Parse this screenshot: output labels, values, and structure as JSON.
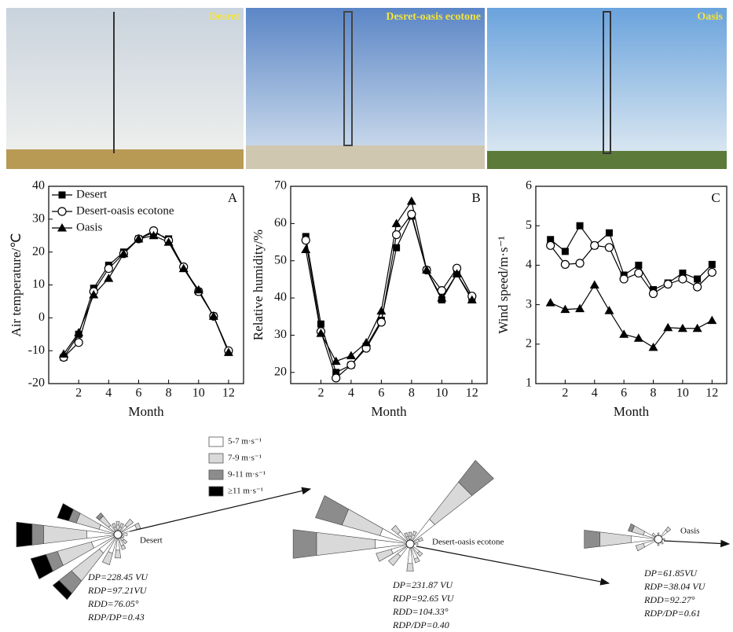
{
  "photos": [
    {
      "label": "Desret"
    },
    {
      "label": "Desret-oasis ecotone"
    },
    {
      "label": "Oasis"
    }
  ],
  "chart_data": [
    {
      "type": "line",
      "panel": "A",
      "x_label": "Month",
      "y_label": "Air temperature/℃",
      "x": [
        1,
        2,
        3,
        4,
        5,
        6,
        7,
        8,
        9,
        10,
        11,
        12
      ],
      "xlim": [
        0,
        13
      ],
      "xticks": [
        2,
        4,
        6,
        8,
        10,
        12
      ],
      "ylim": [
        -20,
        40
      ],
      "yticks": [
        -20,
        -10,
        0,
        10,
        20,
        30,
        40
      ],
      "legend": "upper left",
      "series": [
        {
          "name": "Desert",
          "color": "#000",
          "marker": "square",
          "values": [
            -12,
            -5,
            9,
            16,
            20,
            24,
            26,
            24,
            15,
            8,
            0.5,
            -10.5
          ]
        },
        {
          "name": "Desert-oasis ecotone",
          "color": "#000",
          "marker": "circle",
          "values": [
            -12,
            -7.5,
            8,
            15,
            19.5,
            24,
            26.5,
            23.5,
            15.5,
            8,
            0.5,
            -10
          ]
        },
        {
          "name": "Oasis",
          "color": "#000",
          "marker": "triangle",
          "values": [
            -11,
            -4.5,
            7,
            12,
            19.5,
            24,
            25,
            23,
            15,
            8.5,
            0.5,
            -10.5
          ]
        }
      ]
    },
    {
      "type": "line",
      "panel": "B",
      "x_label": "Month",
      "y_label": "Relative humidity/%",
      "x": [
        1,
        2,
        3,
        4,
        5,
        6,
        7,
        8,
        9,
        10,
        11,
        12
      ],
      "xlim": [
        0,
        13
      ],
      "xticks": [
        2,
        4,
        6,
        8,
        10,
        12
      ],
      "ylim": [
        17,
        70
      ],
      "yticks": [
        20,
        30,
        40,
        50,
        60,
        70
      ],
      "series": [
        {
          "color": "#000",
          "marker": "square",
          "values": [
            56.5,
            33,
            20,
            22,
            27,
            34,
            53.5,
            62,
            47.5,
            39.5,
            46.5,
            40
          ]
        },
        {
          "color": "#000",
          "marker": "circle",
          "values": [
            55.5,
            31,
            18.5,
            22,
            26.5,
            33.5,
            57,
            62.5,
            47.5,
            42,
            48,
            40.5
          ]
        },
        {
          "color": "#000",
          "marker": "triangle",
          "values": [
            53,
            30.5,
            23,
            24.5,
            28,
            36.5,
            60,
            66,
            47.5,
            40,
            46.5,
            39.5
          ]
        }
      ]
    },
    {
      "type": "line",
      "panel": "C",
      "x_label": "Month",
      "y_label": "Wind speed/m·s⁻¹",
      "x": [
        1,
        2,
        3,
        4,
        5,
        6,
        7,
        8,
        9,
        10,
        11,
        12
      ],
      "xlim": [
        0,
        13
      ],
      "xticks": [
        2,
        4,
        6,
        8,
        10,
        12
      ],
      "ylim": [
        1,
        6
      ],
      "yticks": [
        1,
        2,
        3,
        4,
        5,
        6
      ],
      "series": [
        {
          "color": "#000",
          "marker": "square",
          "values": [
            4.65,
            4.35,
            5,
            4.5,
            4.82,
            3.75,
            4,
            3.38,
            3.55,
            3.8,
            3.65,
            4.02
          ]
        },
        {
          "color": "#000",
          "marker": "circle",
          "values": [
            4.5,
            4.02,
            4.05,
            4.5,
            4.45,
            3.65,
            3.8,
            3.28,
            3.52,
            3.65,
            3.45,
            3.82
          ]
        },
        {
          "color": "#000",
          "marker": "triangle",
          "values": [
            3.05,
            2.88,
            2.9,
            3.5,
            2.85,
            2.25,
            2.15,
            1.92,
            2.42,
            2.4,
            2.4,
            2.6
          ]
        }
      ]
    }
  ],
  "wind_rose_legend": [
    {
      "label": "5-7 m·s⁻¹",
      "color": "#ffffff"
    },
    {
      "label": "7-9 m·s⁻¹",
      "color": "#d9d9d9"
    },
    {
      "label": "9-11 m·s⁻¹",
      "color": "#8c8c8c"
    },
    {
      "label": "≥11 m·s⁻¹",
      "color": "#000000"
    }
  ],
  "wind_roses": [
    {
      "label": "Desert",
      "stats": [
        "DP=228.45 VU",
        "RDP=97.21VU",
        "RDD=76.05°",
        "RDP/DP=0.43"
      ],
      "petals": [
        {
          "direction": 270,
          "segments": [
            40,
            55,
            15,
            20
          ]
        },
        {
          "direction": 247.5,
          "segments": [
            35,
            45,
            15,
            20
          ]
        },
        {
          "direction": 225,
          "segments": [
            30,
            45,
            20,
            10
          ]
        },
        {
          "direction": 292.5,
          "segments": [
            25,
            30,
            10,
            15
          ]
        },
        {
          "direction": 315,
          "segments": [
            15,
            15,
            5,
            0
          ]
        },
        {
          "direction": 337.5,
          "segments": [
            10,
            5,
            0,
            0
          ]
        },
        {
          "direction": 0,
          "segments": [
            12,
            5,
            0,
            0
          ]
        },
        {
          "direction": 22.5,
          "segments": [
            10,
            5,
            0,
            0
          ]
        },
        {
          "direction": 45,
          "segments": [
            15,
            10,
            0,
            0
          ]
        },
        {
          "direction": 67.5,
          "segments": [
            25,
            5,
            0,
            0
          ]
        },
        {
          "direction": 90,
          "segments": [
            12,
            0,
            0,
            0
          ]
        },
        {
          "direction": 112.5,
          "segments": [
            8,
            0,
            0,
            0
          ]
        },
        {
          "direction": 135,
          "segments": [
            10,
            5,
            0,
            0
          ]
        },
        {
          "direction": 157.5,
          "segments": [
            15,
            5,
            0,
            0
          ]
        },
        {
          "direction": 180,
          "segments": [
            20,
            10,
            0,
            0
          ]
        },
        {
          "direction": 202.5,
          "segments": [
            25,
            15,
            0,
            0
          ]
        }
      ]
    },
    {
      "label": "Desert-oasis ecotone",
      "stats": [
        "DP=231.87 VU",
        "RDP=92.65 VU",
        "RDD=104.33°",
        "RDP/DP=0.40"
      ],
      "petals": [
        {
          "direction": 45,
          "segments": [
            40,
            60,
            35,
            0
          ]
        },
        {
          "direction": 270,
          "segments": [
            45,
            75,
            30,
            0
          ]
        },
        {
          "direction": 292.5,
          "segments": [
            40,
            50,
            35,
            0
          ]
        },
        {
          "direction": 247.5,
          "segments": [
            25,
            20,
            0,
            0
          ]
        },
        {
          "direction": 225,
          "segments": [
            20,
            15,
            0,
            0
          ]
        },
        {
          "direction": 315,
          "segments": [
            20,
            10,
            0,
            0
          ]
        },
        {
          "direction": 337.5,
          "segments": [
            10,
            5,
            0,
            0
          ]
        },
        {
          "direction": 0,
          "segments": [
            10,
            5,
            0,
            0
          ]
        },
        {
          "direction": 22.5,
          "segments": [
            12,
            5,
            0,
            0
          ]
        },
        {
          "direction": 67.5,
          "segments": [
            12,
            5,
            0,
            0
          ]
        },
        {
          "direction": 90,
          "segments": [
            10,
            0,
            0,
            0
          ]
        },
        {
          "direction": 135,
          "segments": [
            15,
            5,
            0,
            0
          ]
        },
        {
          "direction": 157.5,
          "segments": [
            20,
            5,
            0,
            0
          ]
        },
        {
          "direction": 180,
          "segments": [
            25,
            10,
            0,
            0
          ]
        }
      ]
    },
    {
      "label": "Oasis",
      "stats": [
        "DP=61.85VU",
        "RDP=38.04 VU",
        "RDD=92.27°",
        "RDP/DP=0.61"
      ],
      "petals": [
        {
          "direction": 270,
          "segments": [
            35,
            40,
            20,
            0
          ]
        },
        {
          "direction": 292.5,
          "segments": [
            20,
            15,
            5,
            0
          ]
        },
        {
          "direction": 247.5,
          "segments": [
            20,
            10,
            0,
            0
          ]
        },
        {
          "direction": 45,
          "segments": [
            15,
            5,
            0,
            0
          ]
        },
        {
          "direction": 0,
          "segments": [
            8,
            0,
            0,
            0
          ]
        },
        {
          "direction": 90,
          "segments": [
            8,
            0,
            0,
            0
          ]
        },
        {
          "direction": 135,
          "segments": [
            8,
            0,
            0,
            0
          ]
        },
        {
          "direction": 180,
          "segments": [
            8,
            0,
            0,
            0
          ]
        },
        {
          "direction": 315,
          "segments": [
            10,
            0,
            0,
            0
          ]
        }
      ]
    }
  ]
}
